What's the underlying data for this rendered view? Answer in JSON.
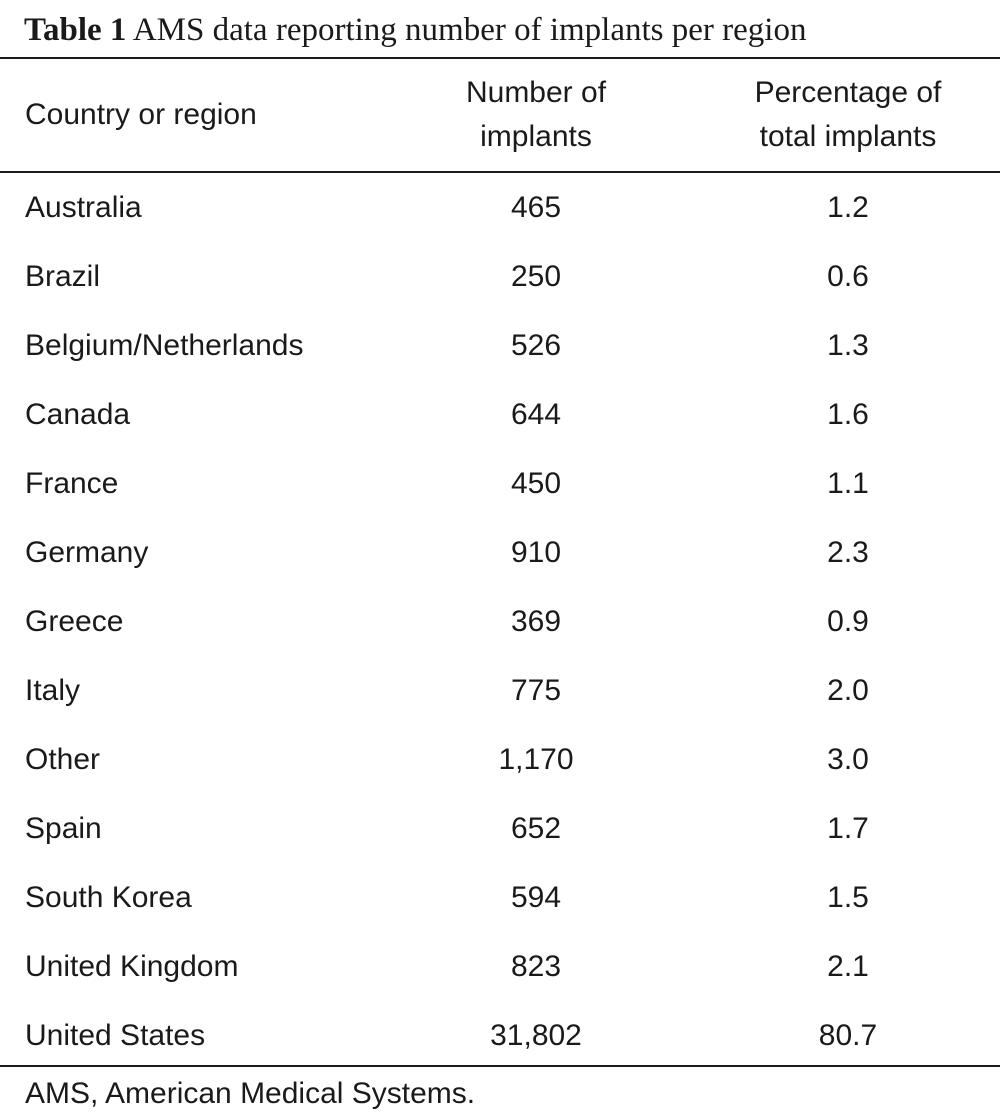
{
  "caption": {
    "label": "Table 1",
    "text": "AMS data reporting number of implants per region"
  },
  "table": {
    "headers": {
      "country": "Country or region",
      "number": [
        "Number of",
        "implants"
      ],
      "percentage": [
        "Percentage of",
        "total implants"
      ]
    },
    "rows": [
      {
        "country": "Australia",
        "number": "465",
        "percentage": "1.2"
      },
      {
        "country": "Brazil",
        "number": "250",
        "percentage": "0.6"
      },
      {
        "country": "Belgium/Netherlands",
        "number": "526",
        "percentage": "1.3"
      },
      {
        "country": "Canada",
        "number": "644",
        "percentage": "1.6"
      },
      {
        "country": "France",
        "number": "450",
        "percentage": "1.1"
      },
      {
        "country": "Germany",
        "number": "910",
        "percentage": "2.3"
      },
      {
        "country": "Greece",
        "number": "369",
        "percentage": "0.9"
      },
      {
        "country": "Italy",
        "number": "775",
        "percentage": "2.0"
      },
      {
        "country": "Other",
        "number": "1,170",
        "percentage": "3.0"
      },
      {
        "country": "Spain",
        "number": "652",
        "percentage": "1.7"
      },
      {
        "country": "South Korea",
        "number": "594",
        "percentage": "1.5"
      },
      {
        "country": "United Kingdom",
        "number": "823",
        "percentage": "2.1"
      },
      {
        "country": "United States",
        "number": "31,802",
        "percentage": "80.7"
      }
    ]
  },
  "footnote": "AMS, American Medical Systems."
}
